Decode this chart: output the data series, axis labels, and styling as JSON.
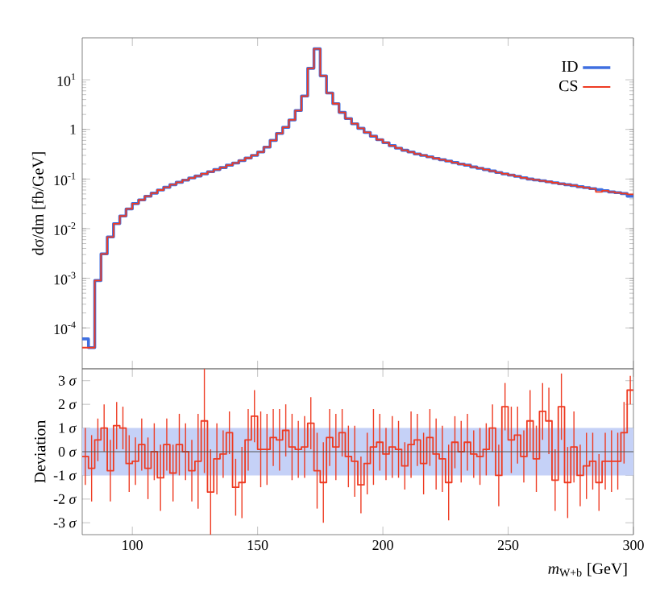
{
  "chart_data": [
    {
      "type": "step",
      "ylabel": "dσ/dm [fb/GeV]",
      "log": "y",
      "legend": "top right",
      "tick_labels": "y",
      "xlim": [
        80,
        300
      ],
      "xticks": [
        100,
        150,
        200,
        250,
        300
      ],
      "ylim": [
        1.5e-05,
        70
      ],
      "yticks": [
        {
          "value": 0.0001,
          "label": "10$^{-4}$"
        },
        {
          "value": 0.001,
          "label": "10$^{-3}$"
        },
        {
          "value": 0.01,
          "label": "10$^{-2}$"
        },
        {
          "value": 0.1,
          "label": "10$^{-1}$"
        },
        {
          "value": 1,
          "label": "1"
        },
        {
          "value": 10,
          "label": "10$^{1}$"
        }
      ],
      "x": [
        81.25,
        83.75,
        86.25,
        88.75,
        91.25,
        93.75,
        96.25,
        98.75,
        101.25,
        103.75,
        106.25,
        108.75,
        111.25,
        113.75,
        116.25,
        118.75,
        121.25,
        123.75,
        126.25,
        128.75,
        131.25,
        133.75,
        136.25,
        138.75,
        141.25,
        143.75,
        146.25,
        148.75,
        151.25,
        153.75,
        156.25,
        158.75,
        161.25,
        163.75,
        166.25,
        168.75,
        171.25,
        173.75,
        176.25,
        178.75,
        181.25,
        183.75,
        186.25,
        188.75,
        191.25,
        193.75,
        196.25,
        198.75,
        201.25,
        203.75,
        206.25,
        208.75,
        211.25,
        213.75,
        216.25,
        218.75,
        221.25,
        223.75,
        226.25,
        228.75,
        231.25,
        233.75,
        236.25,
        238.75,
        241.25,
        243.75,
        246.25,
        248.75,
        251.25,
        253.75,
        256.25,
        258.75,
        261.25,
        263.75,
        266.25,
        268.75,
        271.25,
        273.75,
        276.25,
        278.75,
        281.25,
        283.75,
        286.25,
        288.75,
        291.25,
        293.75,
        296.25,
        298.75
      ],
      "series": [
        {
          "name": "ID",
          "color": "#3f6fe0",
          "values": [
            6e-05,
            4e-05,
            0.0009,
            0.0031,
            0.0068,
            0.0126,
            0.018,
            0.025,
            0.032,
            0.038,
            0.045,
            0.052,
            0.06,
            0.068,
            0.077,
            0.086,
            0.095,
            0.105,
            0.115,
            0.127,
            0.14,
            0.155,
            0.17,
            0.19,
            0.21,
            0.235,
            0.265,
            0.3,
            0.35,
            0.44,
            0.6,
            0.83,
            1.1,
            1.55,
            2.4,
            4.7,
            17,
            42,
            12,
            5.4,
            3.3,
            2.2,
            1.65,
            1.3,
            1.05,
            0.87,
            0.73,
            0.62,
            0.54,
            0.47,
            0.42,
            0.38,
            0.35,
            0.32,
            0.3,
            0.28,
            0.26,
            0.245,
            0.23,
            0.215,
            0.2,
            0.19,
            0.175,
            0.165,
            0.155,
            0.145,
            0.135,
            0.127,
            0.12,
            0.113,
            0.106,
            0.1,
            0.096,
            0.092,
            0.088,
            0.084,
            0.08,
            0.077,
            0.074,
            0.07,
            0.067,
            0.064,
            0.061,
            0.058,
            0.055,
            0.053,
            0.051,
            0.045
          ]
        },
        {
          "name": "CS",
          "color": "#ee3b22",
          "values": [
            4e-05,
            4e-05,
            0.0009,
            0.0031,
            0.0068,
            0.0126,
            0.018,
            0.025,
            0.032,
            0.038,
            0.045,
            0.052,
            0.06,
            0.068,
            0.077,
            0.086,
            0.095,
            0.105,
            0.115,
            0.127,
            0.14,
            0.155,
            0.17,
            0.19,
            0.21,
            0.235,
            0.265,
            0.3,
            0.35,
            0.44,
            0.6,
            0.83,
            1.1,
            1.55,
            2.4,
            4.7,
            17,
            42,
            12,
            5.4,
            3.3,
            2.2,
            1.65,
            1.3,
            1.05,
            0.87,
            0.73,
            0.62,
            0.54,
            0.47,
            0.42,
            0.38,
            0.35,
            0.32,
            0.3,
            0.28,
            0.26,
            0.245,
            0.23,
            0.215,
            0.2,
            0.19,
            0.175,
            0.165,
            0.155,
            0.145,
            0.135,
            0.127,
            0.12,
            0.113,
            0.106,
            0.1,
            0.096,
            0.092,
            0.088,
            0.084,
            0.08,
            0.077,
            0.074,
            0.07,
            0.067,
            0.064,
            0.055,
            0.058,
            0.055,
            0.053,
            0.051,
            0.049
          ]
        }
      ]
    },
    {
      "type": "step",
      "ylabel": "Deviation",
      "xlabel": "*m*$_{W+b}$ [GeV]",
      "color": "#ee3b22",
      "xlim": [
        80,
        300
      ],
      "xticks": [
        100,
        150,
        200,
        250,
        300
      ],
      "ylim": [
        -3.5,
        3.5
      ],
      "yticks": [
        {
          "value": -3,
          "label": "-3 *σ*"
        },
        {
          "value": -2,
          "label": "-2 *σ*"
        },
        {
          "value": -1,
          "label": "-1 *σ*"
        },
        {
          "value": 0,
          "label": "0 *σ*"
        },
        {
          "value": 1,
          "label": "1 *σ*"
        },
        {
          "value": 2,
          "label": "2 *σ*"
        },
        {
          "value": 3,
          "label": "3 *σ*"
        }
      ],
      "bands": [
        {
          "axis": "y",
          "from": -1,
          "to": 1,
          "color": "#c5d1f7"
        }
      ],
      "ref_lines": [
        {
          "axis": "y",
          "value": 0,
          "color": "#555555"
        }
      ],
      "x": [
        81.25,
        83.75,
        86.25,
        88.75,
        91.25,
        93.75,
        96.25,
        98.75,
        101.25,
        103.75,
        106.25,
        108.75,
        111.25,
        113.75,
        116.25,
        118.75,
        121.25,
        123.75,
        126.25,
        128.75,
        131.25,
        133.75,
        136.25,
        138.75,
        141.25,
        143.75,
        146.25,
        148.75,
        151.25,
        153.75,
        156.25,
        158.75,
        161.25,
        163.75,
        166.25,
        168.75,
        171.25,
        173.75,
        176.25,
        178.75,
        181.25,
        183.75,
        186.25,
        188.75,
        191.25,
        193.75,
        196.25,
        198.75,
        201.25,
        203.75,
        206.25,
        208.75,
        211.25,
        213.75,
        216.25,
        218.75,
        221.25,
        223.75,
        226.25,
        228.75,
        231.25,
        233.75,
        236.25,
        238.75,
        241.25,
        243.75,
        246.25,
        248.75,
        251.25,
        253.75,
        256.25,
        258.75,
        261.25,
        263.75,
        266.25,
        268.75,
        271.25,
        273.75,
        276.25,
        278.75,
        281.25,
        283.75,
        286.25,
        288.75,
        291.25,
        293.75,
        296.25,
        298.75
      ],
      "values": [
        -0.2,
        -0.7,
        0.5,
        1.0,
        -0.8,
        1.1,
        1.0,
        -0.5,
        -0.4,
        0.3,
        -0.7,
        0.0,
        -1.1,
        0.3,
        -0.9,
        0.3,
        0.0,
        -0.8,
        -0.4,
        1.3,
        -1.7,
        -0.3,
        -0.1,
        0.8,
        -1.5,
        -1.3,
        0.5,
        1.5,
        0.1,
        0.1,
        0.6,
        0.5,
        0.9,
        0.2,
        0.1,
        0.2,
        1.2,
        -0.8,
        -1.3,
        0.6,
        0.2,
        0.8,
        -0.2,
        -0.4,
        -1.4,
        -0.5,
        0.2,
        0.4,
        -0.1,
        0.2,
        0.1,
        -0.6,
        0.3,
        0.5,
        -0.5,
        0.6,
        -0.1,
        -0.3,
        -1.3,
        0.4,
        0.0,
        0.4,
        -0.1,
        -0.2,
        0.1,
        1.0,
        -1.0,
        1.9,
        0.5,
        0.7,
        -0.2,
        1.3,
        -0.3,
        1.7,
        1.3,
        -1.2,
        1.9,
        -1.3,
        0.2,
        -1.0,
        -0.6,
        -0.4,
        -1.3,
        -0.4,
        -0.4,
        -0.4,
        0.8,
        2.6
      ],
      "errors": [
        1.2,
        1.4,
        0.9,
        1.0,
        1.3,
        1.0,
        0.9,
        1.2,
        1.0,
        1.1,
        1.3,
        1.2,
        1.4,
        1.1,
        1.2,
        1.3,
        1.2,
        1.3,
        2.0,
        2.2,
        1.8,
        1.5,
        1.0,
        0.9,
        1.2,
        1.5,
        1.3,
        1.1,
        1.6,
        1.5,
        1.2,
        1.3,
        1.1,
        1.4,
        1.2,
        1.3,
        1.1,
        1.6,
        1.7,
        1.2,
        1.4,
        1.0,
        1.3,
        1.5,
        1.2,
        1.3,
        1.6,
        1.2,
        1.1,
        1.3,
        1.2,
        1.0,
        1.4,
        1.1,
        1.3,
        1.2,
        1.5,
        1.4,
        1.6,
        1.1,
        1.3,
        1.2,
        1.0,
        1.2,
        1.1,
        1.0,
        1.3,
        1.0,
        1.4,
        1.2,
        1.1,
        1.3,
        1.4,
        1.2,
        1.4,
        1.3,
        1.4,
        1.5,
        1.5,
        1.3,
        1.4,
        1.2,
        1.2,
        1.2,
        1.3,
        1.2,
        1.3,
        0.6
      ]
    }
  ]
}
